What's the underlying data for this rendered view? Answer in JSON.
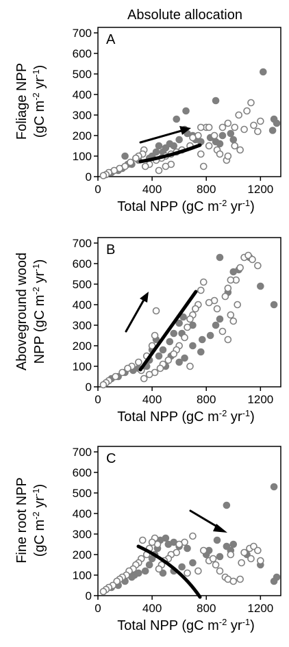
{
  "title": "Absolute allocation",
  "chart_data": [
    {
      "type": "scatter",
      "annotation": "A",
      "ylabel": [
        [
          "Foliage NPP"
        ],
        [
          "(gC m",
          "-2",
          " yr",
          "-1",
          ")"
        ]
      ],
      "xlabel": [
        "Total NPP (gC m",
        "-2",
        " yr",
        "-1",
        ")"
      ],
      "xlim": [
        0,
        1350
      ],
      "ylim": [
        0,
        700
      ],
      "xticks": [
        0,
        400,
        800,
        1200
      ],
      "yticks": [
        0,
        100,
        200,
        300,
        400,
        500,
        600,
        700
      ],
      "series": [
        {
          "color": "#7f7f7f",
          "filled": true,
          "x": [
            1220,
            870,
            650,
            580,
            1300,
            1320,
            1290,
            920,
            980,
            1000,
            870,
            900,
            700,
            720,
            600,
            560,
            500,
            480,
            430,
            400,
            380,
            300,
            250,
            220,
            200,
            180,
            150,
            100,
            640,
            660,
            530,
            450,
            760,
            830
          ],
          "values": [
            510,
            370,
            320,
            280,
            280,
            260,
            225,
            200,
            210,
            180,
            170,
            160,
            200,
            180,
            180,
            150,
            140,
            120,
            120,
            100,
            90,
            80,
            60,
            60,
            100,
            40,
            30,
            20,
            230,
            210,
            160,
            150,
            170,
            190
          ]
        },
        {
          "color": "#7f7f7f",
          "filled": false,
          "x": [
            1130,
            1100,
            1040,
            960,
            920,
            1010,
            1080,
            1150,
            1200,
            1180,
            800,
            760,
            820,
            740,
            700,
            680,
            620,
            580,
            540,
            500,
            470,
            430,
            380,
            350,
            340,
            330,
            300,
            280,
            240,
            200,
            160,
            120,
            80,
            60,
            40,
            780,
            950,
            960,
            1050,
            1010,
            880,
            900,
            540,
            500,
            450,
            820,
            860,
            760
          ],
          "values": [
            360,
            320,
            300,
            260,
            240,
            240,
            230,
            250,
            270,
            220,
            240,
            240,
            240,
            200,
            190,
            150,
            130,
            120,
            110,
            100,
            90,
            80,
            60,
            50,
            130,
            110,
            100,
            90,
            70,
            50,
            40,
            30,
            20,
            10,
            5,
            50,
            80,
            100,
            130,
            150,
            130,
            110,
            60,
            50,
            30,
            150,
            200,
            110
          ]
        }
      ]
    },
    {
      "type": "scatter",
      "annotation": "B",
      "ylabel": [
        [
          "Aboveground wood"
        ],
        [
          "NPP (gC m",
          "-2",
          " yr",
          "-1",
          ")"
        ]
      ],
      "xlabel": [
        "Total NPP (gC m",
        "-2",
        " yr",
        "-1",
        ")"
      ],
      "xlim": [
        0,
        1350
      ],
      "ylim": [
        0,
        700
      ],
      "xticks": [
        0,
        400,
        800,
        1200
      ],
      "yticks": [
        0,
        100,
        200,
        300,
        400,
        500,
        600,
        700
      ],
      "series": [
        {
          "color": "#7f7f7f",
          "filled": true,
          "x": [
            900,
            1000,
            1040,
            1120,
            1200,
            1300,
            960,
            900,
            870,
            830,
            770,
            760,
            700,
            630,
            600,
            560,
            530,
            480,
            450,
            430,
            400,
            380,
            360,
            300,
            260,
            200,
            150,
            100,
            600,
            640,
            700,
            620,
            540,
            500
          ],
          "values": [
            630,
            560,
            570,
            630,
            490,
            400,
            460,
            330,
            300,
            250,
            230,
            170,
            200,
            340,
            310,
            260,
            220,
            180,
            150,
            230,
            180,
            130,
            100,
            90,
            80,
            70,
            50,
            40,
            120,
            140,
            300,
            260,
            150,
            100
          ]
        },
        {
          "color": "#7f7f7f",
          "filled": false,
          "x": [
            1080,
            1110,
            1140,
            1180,
            1050,
            1020,
            980,
            960,
            940,
            880,
            860,
            820,
            780,
            760,
            740,
            720,
            700,
            680,
            660,
            640,
            600,
            580,
            560,
            520,
            480,
            460,
            420,
            380,
            340,
            320,
            430,
            420,
            400,
            360,
            300,
            250,
            220,
            180,
            130,
            80,
            60,
            40,
            680,
            980,
            1030,
            1000,
            920,
            960
          ],
          "values": [
            630,
            640,
            620,
            590,
            580,
            520,
            520,
            480,
            440,
            380,
            420,
            410,
            510,
            470,
            400,
            380,
            350,
            330,
            290,
            240,
            200,
            180,
            160,
            130,
            110,
            90,
            70,
            60,
            40,
            80,
            370,
            250,
            200,
            150,
            120,
            100,
            90,
            70,
            50,
            30,
            20,
            10,
            100,
            350,
            400,
            320,
            270,
            230
          ]
        }
      ]
    },
    {
      "type": "scatter",
      "annotation": "C",
      "ylabel": [
        [
          "Fine root NPP"
        ],
        [
          "(gC m",
          "-2",
          " yr",
          "-1",
          ")"
        ]
      ],
      "xlabel": [
        "Total NPP (gC m",
        "-2",
        " yr",
        "-1",
        ")"
      ],
      "xlim": [
        0,
        1350
      ],
      "ylim": [
        0,
        700
      ],
      "xticks": [
        0,
        400,
        800,
        1200
      ],
      "yticks": [
        0,
        100,
        200,
        300,
        400,
        500,
        600,
        700
      ],
      "series": [
        {
          "color": "#7f7f7f",
          "filled": true,
          "x": [
            1300,
            950,
            1320,
            1300,
            1000,
            950,
            980,
            1100,
            1200,
            900,
            880,
            820,
            800,
            700,
            660,
            600,
            560,
            520,
            500,
            460,
            440,
            420,
            400,
            380,
            350,
            300,
            270,
            250,
            200,
            150,
            100,
            620,
            560,
            480
          ],
          "values": [
            530,
            440,
            90,
            70,
            250,
            240,
            220,
            200,
            150,
            190,
            270,
            220,
            200,
            160,
            230,
            240,
            260,
            250,
            280,
            270,
            230,
            200,
            180,
            150,
            120,
            110,
            100,
            90,
            70,
            50,
            40,
            140,
            120,
            110
          ]
        },
        {
          "color": "#7f7f7f",
          "filled": false,
          "x": [
            700,
            640,
            600,
            580,
            540,
            520,
            490,
            470,
            450,
            440,
            420,
            400,
            380,
            360,
            330,
            320,
            300,
            280,
            260,
            230,
            210,
            180,
            160,
            140,
            110,
            80,
            60,
            40,
            780,
            820,
            850,
            870,
            900,
            940,
            960,
            1000,
            1050,
            1080,
            1120,
            1150,
            1180,
            1130,
            1060,
            1200,
            980,
            740,
            660
          ],
          "values": [
            290,
            260,
            250,
            210,
            200,
            180,
            170,
            150,
            130,
            250,
            280,
            260,
            230,
            200,
            270,
            180,
            160,
            150,
            130,
            120,
            100,
            90,
            80,
            70,
            50,
            40,
            30,
            20,
            220,
            170,
            180,
            150,
            120,
            90,
            80,
            70,
            80,
            210,
            230,
            240,
            220,
            180,
            160,
            170,
            200,
            120,
            110
          ]
        }
      ]
    }
  ]
}
